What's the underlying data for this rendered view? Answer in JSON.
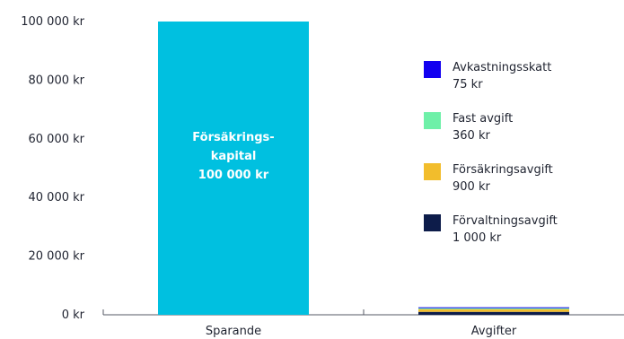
{
  "chart_data": {
    "type": "bar",
    "stacked": true,
    "categories": [
      "Sparande",
      "Avgifter"
    ],
    "y_ticks": [
      "0 kr",
      "20 000 kr",
      "40 000 kr",
      "60 000 kr",
      "80 000 kr",
      "100 000 kr"
    ],
    "y_tick_values": [
      0,
      20000,
      40000,
      60000,
      80000,
      100000
    ],
    "ylim": [
      0,
      100000
    ],
    "grid": false,
    "legend_position": "right",
    "series": [
      {
        "name": "Försäkringskapital",
        "color": "#00c0e0",
        "values": [
          100000,
          0
        ]
      },
      {
        "name": "Förvaltningsavgift",
        "color": "#0d1c4a",
        "values": [
          0,
          1000
        ]
      },
      {
        "name": "Försäkringsavgift",
        "color": "#f2bd2c",
        "values": [
          0,
          900
        ]
      },
      {
        "name": "Fast avgift",
        "color": "#6ef0a8",
        "values": [
          0,
          360
        ]
      },
      {
        "name": "Avkastningsskatt",
        "color": "#1200f0",
        "values": [
          0,
          75
        ]
      }
    ],
    "bar_label": {
      "lines": [
        "Försäkrings-",
        "kapital",
        "100 000 kr"
      ]
    },
    "legend": [
      {
        "label": "Avkastningsskatt",
        "value": "75 kr",
        "color": "#1200f0"
      },
      {
        "label": "Fast avgift",
        "value": "360 kr",
        "color": "#6ef0a8"
      },
      {
        "label": "Försäkringsavgift",
        "value": "900 kr",
        "color": "#f2bd2c"
      },
      {
        "label": "Förvaltningsavgift",
        "value": "1 000 kr",
        "color": "#0d1c4a"
      }
    ]
  }
}
